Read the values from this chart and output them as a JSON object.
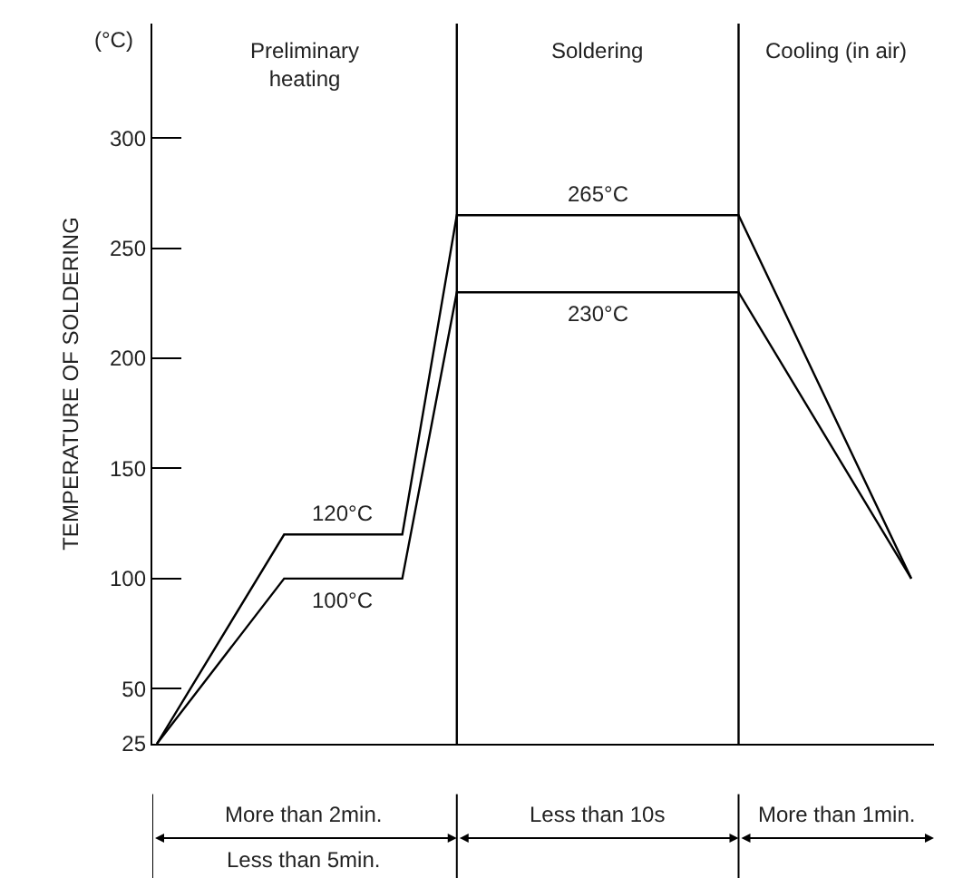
{
  "chart_data": {
    "type": "line",
    "ylabel": "TEMPERATURE OF SOLDERING",
    "categories": [
      null,
      null,
      null,
      null,
      null,
      null,
      null,
      null,
      null,
      null,
      null,
      null,
      null,
      null,
      null,
      null,
      null,
      null,
      null,
      null,
      null,
      null,
      null,
      null,
      null,
      null,
      null,
      null,
      null,
      null,
      null,
      null,
      null,
      null,
      null,
      null,
      null,
      null,
      null,
      null,
      null,
      null,
      null,
      null,
      null,
      null,
      null,
      null,
      null,
      null,
      null,
      null,
      null,
      null,
      null,
      null,
      null,
      null,
      null,
      null,
      null,
      null,
      null,
      null,
      null,
      null,
      null,
      null,
      null,
      null,
      null,
      null,
      null,
      null,
      null,
      null,
      null,
      null,
      null,
      null,
      null,
      null,
      null,
      null,
      null,
      null
    ],
    "series": [
      {
        "color": "#000000",
        "values": [
          25,
          null,
          null,
          null,
          null,
          null,
          null,
          null,
          null,
          null,
          null,
          null,
          null,
          null,
          120,
          null,
          null,
          null,
          null,
          null,
          null,
          null,
          null,
          null,
          null,
          null,
          null,
          120,
          null,
          null,
          null,
          null,
          null,
          265,
          null,
          null,
          null,
          null,
          null,
          null,
          null,
          null,
          null,
          null,
          null,
          null,
          null,
          null,
          null,
          null,
          null,
          null,
          null,
          null,
          null,
          null,
          null,
          null,
          null,
          null,
          null,
          null,
          null,
          null,
          265,
          null,
          null,
          null,
          null,
          null,
          null,
          null,
          null,
          null,
          null,
          null,
          null,
          null,
          null,
          null,
          null,
          null,
          null,
          100,
          null,
          null
        ]
      },
      {
        "color": "#000000",
        "values": [
          25,
          null,
          null,
          null,
          null,
          null,
          null,
          null,
          null,
          null,
          null,
          null,
          null,
          null,
          100,
          null,
          null,
          null,
          null,
          null,
          null,
          null,
          null,
          null,
          null,
          null,
          null,
          100,
          null,
          null,
          null,
          null,
          null,
          230,
          null,
          null,
          null,
          null,
          null,
          null,
          null,
          null,
          null,
          null,
          null,
          null,
          null,
          null,
          null,
          null,
          null,
          null,
          null,
          null,
          null,
          null,
          null,
          null,
          null,
          null,
          null,
          null,
          null,
          null,
          230,
          null,
          null,
          null,
          null,
          null,
          null,
          null,
          null,
          null,
          null,
          null,
          null,
          null,
          null,
          null,
          null,
          null,
          null,
          100,
          null,
          null
        ]
      }
    ],
    "ylim": [
      25,
      352
    ],
    "yticks": [
      25,
      50,
      100,
      150,
      200,
      250,
      300
    ],
    "tick_labels": "y",
    "marker": "none",
    "line_style": "solid",
    "annotations": [
      "(°C)",
      "Preliminary heating",
      "Soldering",
      "Cooling (in air)",
      {
        "text": "120°C",
        "y": 120
      },
      {
        "text": "100°C",
        "y": 100
      },
      {
        "text": "265°C",
        "y": 265
      },
      {
        "text": "230°C",
        "y": 230
      },
      "More than 2min.",
      "Less than 5min.",
      "Less than 10s",
      "More than 1min."
    ]
  }
}
